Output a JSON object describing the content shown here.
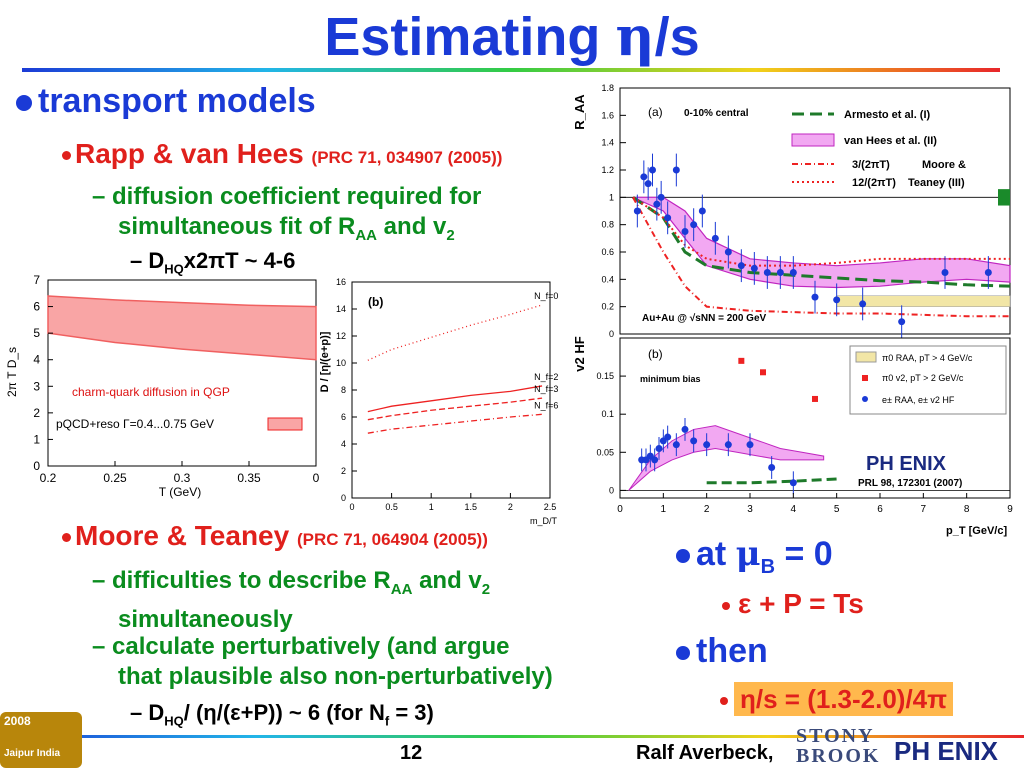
{
  "slide": {
    "title_main": "Estimating ",
    "title_eta": "η",
    "title_tail": "/s",
    "transport_models": "transport models",
    "rapp_label": "Rapp & van Hees",
    "rapp_ref": "(PRC 71, 034907 (2005))",
    "diffusion_line1": "diffusion coefficient required for",
    "diffusion_line2_a": "simultaneous fit of R",
    "diffusion_line2_sub1": "AA",
    "diffusion_line2_b": " and v",
    "diffusion_line2_sub2": "2",
    "dhq_a": "D",
    "dhq_sub": "HQ",
    "dhq_b": "x2πT ~ 4-6",
    "moore_label": "Moore & Teaney",
    "moore_ref": "(PRC 71, 064904 (2005))",
    "difficulty_a": "difficulties to describe R",
    "difficulty_sub1": "AA",
    "difficulty_b": " and v",
    "difficulty_sub2": "2",
    "difficulty_line2": "simultaneously",
    "calc_line1": "calculate perturbatively (and argue",
    "calc_line2": "that plausible also non-perturbatively)",
    "dhq2_a": "D",
    "dhq2_sub": "HQ",
    "dhq2_b": "/ (η/(ε+P)) ~ 6   (for N",
    "dhq2_sub2": "f",
    "dhq2_c": " = 3)",
    "at_mu_a": "at ",
    "at_mu_mu": "μ",
    "at_mu_sub": "B",
    "at_mu_b": " = 0",
    "eps_line": "ε + P = Ts",
    "then": "then",
    "result": "η/s = (1.3-2.0)/4π",
    "page_number": "12",
    "author": "Ralf Averbeck,",
    "stony_top": "STONY",
    "stony_bottom": "BROOK",
    "phenix_logo": "PH ENIX",
    "corner_year": "2008",
    "corner_city": "Jaipur India"
  },
  "chart_data": [
    {
      "type": "area",
      "ylabel": "2π T D_s",
      "xlabel": "T (GeV)",
      "xlim": [
        0.2,
        0
      ],
      "ylim": [
        0,
        7
      ],
      "xticks": [
        "0.2",
        "0.25",
        "0.3",
        "0.35",
        "0"
      ],
      "yticks": [
        "0",
        "1",
        "2",
        "3",
        "4",
        "5",
        "6",
        "7"
      ],
      "annotation": "charm-quark diffusion in QGP",
      "legend": "pQCD+reso Γ=0.4...0.75 GeV",
      "color": "#f06060",
      "band": {
        "x": [
          0.2,
          0.25,
          0.3,
          0.35,
          0.4
        ],
        "upper": [
          6.4,
          6.25,
          6.15,
          6.05,
          6.0
        ],
        "lower": [
          5.0,
          4.65,
          4.4,
          4.2,
          4.0
        ]
      }
    },
    {
      "type": "line",
      "panel_label": "(b)",
      "ylabel": "D / [η/(e+p)]",
      "xlabel": "m_D/T",
      "xlim": [
        0,
        2.5
      ],
      "ylim": [
        0,
        16
      ],
      "xticks": [
        "0",
        "0.5",
        "1",
        "1.5",
        "2",
        "2.5"
      ],
      "yticks": [
        "0",
        "2",
        "4",
        "6",
        "8",
        "10",
        "12",
        "14",
        "16"
      ],
      "series_labels": [
        "N_f=0",
        "N_f=2",
        "N_f=3",
        "N_f=6"
      ],
      "series": [
        {
          "name": "N_f=0",
          "style": "dotted",
          "x": [
            0.2,
            0.5,
            1.0,
            1.5,
            2.0,
            2.4
          ],
          "y": [
            10.2,
            11.0,
            11.9,
            12.8,
            13.6,
            14.3
          ]
        },
        {
          "name": "N_f=2",
          "style": "solid",
          "x": [
            0.2,
            0.5,
            1.0,
            1.5,
            2.0,
            2.4
          ],
          "y": [
            6.4,
            6.8,
            7.2,
            7.6,
            7.9,
            8.3
          ]
        },
        {
          "name": "N_f=3",
          "style": "dashed",
          "x": [
            0.2,
            0.5,
            1.0,
            1.5,
            2.0,
            2.4
          ],
          "y": [
            5.8,
            6.1,
            6.5,
            6.8,
            7.1,
            7.4
          ]
        },
        {
          "name": "N_f=6",
          "style": "dashdot",
          "x": [
            0.2,
            0.5,
            1.0,
            1.5,
            2.0,
            2.4
          ],
          "y": [
            4.8,
            5.1,
            5.4,
            5.7,
            6.0,
            6.2
          ]
        }
      ]
    },
    {
      "type": "scatter",
      "panel_label": "(a)",
      "subtitle": "0-10% central",
      "ylabel": "R_AA",
      "ylim": [
        0,
        1.8
      ],
      "yticks": [
        "0",
        "0.2",
        "0.4",
        "0.6",
        "0.8",
        "1",
        "1.2",
        "1.4",
        "1.6",
        "1.8"
      ],
      "collision": "Au+Au @ √sNN = 200 GeV",
      "legend": [
        "Armesto et al. (I)",
        "van Hees et al. (II)",
        "3/(2πT)",
        "12/(2πT)",
        "Moore &",
        "Teaney (III)"
      ],
      "points": {
        "x": [
          0.4,
          0.55,
          0.65,
          0.75,
          0.85,
          0.95,
          1.1,
          1.3,
          1.5,
          1.7,
          1.9,
          2.2,
          2.5,
          2.8,
          3.1,
          3.4,
          3.7,
          4.0,
          4.5,
          5.0,
          5.6,
          6.5,
          7.5,
          8.5
        ],
        "y": [
          0.9,
          1.15,
          1.1,
          1.2,
          0.95,
          1.0,
          0.85,
          1.2,
          0.75,
          0.8,
          0.9,
          0.7,
          0.6,
          0.5,
          0.48,
          0.45,
          0.45,
          0.45,
          0.27,
          0.25,
          0.22,
          0.09,
          0.45,
          0.45
        ]
      },
      "curves": {
        "x": [
          0.3,
          1.0,
          1.5,
          2.0,
          3.0,
          4.0,
          5.0,
          6.0,
          7.0,
          8.0,
          9.0
        ],
        "armesto": [
          1.0,
          0.85,
          0.6,
          0.5,
          0.45,
          0.43,
          0.41,
          0.39,
          0.38,
          0.36,
          0.35
        ],
        "vanhees_upper": [
          1.0,
          1.0,
          0.9,
          0.7,
          0.55,
          0.52,
          0.5,
          0.52,
          0.55,
          0.55,
          0.5
        ],
        "vanhees_lower": [
          1.0,
          0.9,
          0.7,
          0.5,
          0.4,
          0.35,
          0.34,
          0.35,
          0.38,
          0.4,
          0.38
        ],
        "moore_3": [
          1.0,
          0.85,
          0.65,
          0.55,
          0.5,
          0.5,
          0.52,
          0.55,
          0.55,
          0.55,
          0.55
        ],
        "moore_12": [
          1.0,
          0.6,
          0.35,
          0.2,
          0.17,
          0.16,
          0.15,
          0.15,
          0.14,
          0.13,
          0.13
        ]
      }
    },
    {
      "type": "scatter",
      "panel_label": "(b)",
      "subtitle": "minimum bias",
      "ylabel": "v2 HF",
      "xlabel": "p_T [GeV/c]",
      "xlim": [
        0,
        9
      ],
      "ylim": [
        -0.01,
        0.2
      ],
      "xticks": [
        "0",
        "1",
        "2",
        "3",
        "4",
        "5",
        "6",
        "7",
        "8",
        "9"
      ],
      "yticks": [
        "0",
        "0.05",
        "0.1",
        "0.15"
      ],
      "legend": [
        "π0 RAA, pT > 4 GeV/c",
        "π0 v2, pT > 2 GeV/c",
        "e± RAA, e± v2 HF"
      ],
      "points": {
        "x": [
          0.5,
          0.6,
          0.7,
          0.8,
          0.9,
          1.0,
          1.1,
          1.3,
          1.5,
          1.7,
          2.0,
          2.5,
          3.0,
          3.5,
          4.0
        ],
        "y": [
          0.04,
          0.04,
          0.045,
          0.04,
          0.055,
          0.065,
          0.07,
          0.06,
          0.08,
          0.065,
          0.06,
          0.06,
          0.06,
          0.03,
          0.01
        ]
      },
      "pi0_v2": {
        "x": [
          2.8,
          3.3,
          4.5
        ],
        "y": [
          0.17,
          0.155,
          0.12
        ]
      },
      "reference": "PRL 98, 172301 (2007)",
      "logo": "PH ENIX"
    }
  ]
}
